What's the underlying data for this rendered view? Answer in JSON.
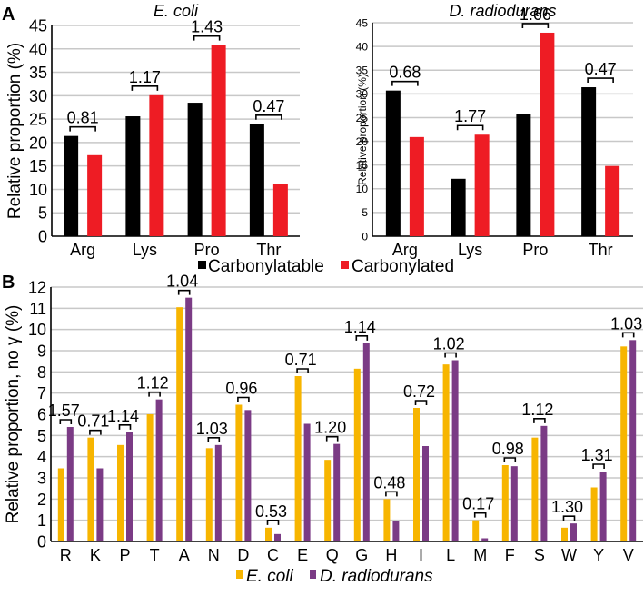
{
  "panels": {
    "A": {
      "label": "A"
    },
    "B": {
      "label": "B"
    }
  },
  "colors": {
    "carbonylatable": "#000000",
    "carbonylated": "#ee1c24",
    "ecoli": "#f7b500",
    "drad": "#7b3b85",
    "grid": "#c8c8c8"
  },
  "chart_data": [
    {
      "id": "A-ecoli",
      "type": "bar",
      "panel": "A",
      "title": "E. coli",
      "xlabel": "",
      "ylabel": "Relative proportion (%)",
      "ylim": [
        0,
        45
      ],
      "yticks": [
        0,
        5,
        10,
        15,
        20,
        25,
        30,
        35,
        40,
        45
      ],
      "categories": [
        "Arg",
        "Lys",
        "Pro",
        "Thr"
      ],
      "series": [
        {
          "name": "Carbonylatable",
          "values": [
            21.4,
            25.6,
            28.5,
            23.9
          ]
        },
        {
          "name": "Carbonylated",
          "values": [
            17.3,
            30.1,
            40.8,
            11.2
          ]
        }
      ],
      "ratios": [
        "0.81",
        "1.17",
        "1.43",
        "0.47"
      ],
      "grid": true
    },
    {
      "id": "A-drad",
      "type": "bar",
      "panel": "A",
      "title": "D. radiodurans",
      "xlabel": "",
      "ylabel": "Relative proportion (%)",
      "ylim": [
        0,
        45
      ],
      "yticks": [
        0,
        5,
        10,
        15,
        20,
        25,
        30,
        35,
        40,
        45
      ],
      "categories": [
        "Arg",
        "Lys",
        "Pro",
        "Thr"
      ],
      "series": [
        {
          "name": "Carbonylatable",
          "values": [
            30.7,
            12.1,
            25.8,
            31.4
          ]
        },
        {
          "name": "Carbonylated",
          "values": [
            20.9,
            21.4,
            42.9,
            14.8
          ]
        }
      ],
      "ratios": [
        "0.68",
        "1.77",
        "1.66",
        "0.47"
      ],
      "grid": true
    },
    {
      "id": "B",
      "type": "bar",
      "panel": "B",
      "title": "",
      "xlabel": "",
      "ylabel": "Relative proportion, no γ (%)",
      "ylim": [
        0,
        12
      ],
      "yticks": [
        0,
        1,
        2,
        3,
        4,
        5,
        6,
        7,
        8,
        9,
        10,
        11,
        12
      ],
      "categories": [
        "R",
        "K",
        "P",
        "T",
        "A",
        "N",
        "D",
        "C",
        "E",
        "Q",
        "G",
        "H",
        "I",
        "L",
        "M",
        "F",
        "S",
        "W",
        "Y",
        "V"
      ],
      "series": [
        {
          "name": "E. coli",
          "values": [
            3.45,
            4.9,
            4.55,
            6.0,
            11.05,
            4.4,
            6.45,
            0.65,
            7.8,
            3.85,
            8.15,
            2.0,
            6.3,
            8.35,
            1.0,
            3.6,
            4.9,
            0.65,
            2.55,
            9.2
          ]
        },
        {
          "name": "D. radiodurans",
          "values": [
            5.4,
            3.45,
            5.15,
            6.7,
            11.5,
            4.55,
            6.2,
            0.35,
            5.55,
            4.6,
            9.35,
            0.95,
            4.5,
            8.55,
            0.15,
            3.55,
            5.45,
            0.85,
            3.3,
            9.5
          ]
        }
      ],
      "ratios": [
        "1.57",
        "0.71",
        "1.14",
        "1.12",
        "1.04",
        "1.03",
        "0.96",
        "0.53",
        "0.71",
        "1.20",
        "1.14",
        "0.48",
        "0.72",
        "1.02",
        "0.17",
        "0.98",
        "1.12",
        "1.30",
        "1.31",
        "1.03"
      ],
      "grid": true
    }
  ],
  "legendA": [
    "Carbonylatable",
    "Carbonylated"
  ],
  "legendB": [
    "E. coli",
    "D. radiodurans"
  ]
}
